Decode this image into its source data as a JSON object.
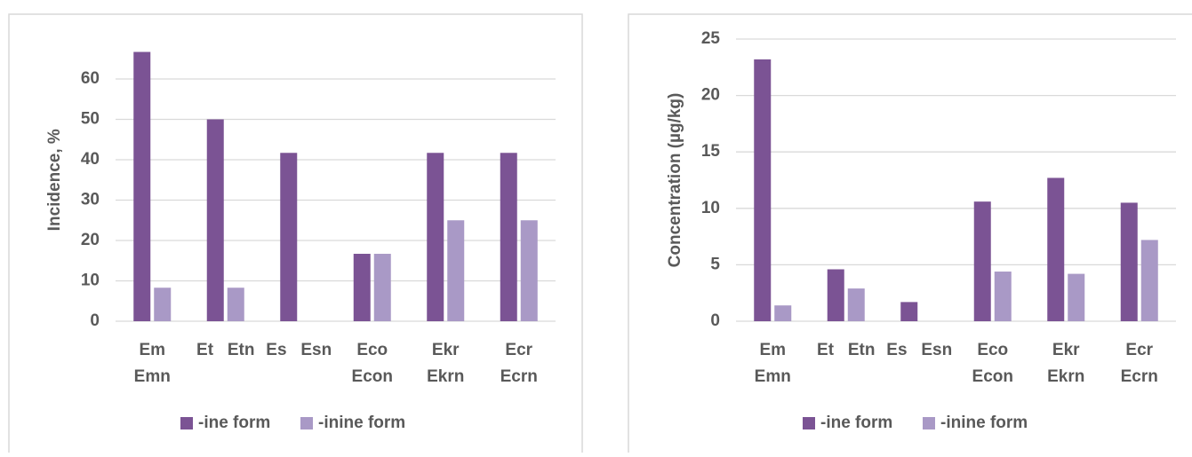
{
  "chart_data": [
    {
      "type": "bar",
      "y_label": "Incidence, %",
      "categories": [
        [
          "Em",
          "Emn"
        ],
        [
          "Et   Etn"
        ],
        [
          "Es   Esn"
        ],
        [
          "Eco",
          "Econ"
        ],
        [
          "Ekr",
          "Ekrn"
        ],
        [
          "Ecr",
          "Ecrn"
        ]
      ],
      "series": [
        {
          "name": "-ine form",
          "color": "#7b5394",
          "values": [
            66.7,
            50,
            41.7,
            16.7,
            41.7,
            41.7
          ]
        },
        {
          "name": "-inine form",
          "color": "#a999c6",
          "values": [
            8.3,
            8.3,
            0,
            16.7,
            25,
            25
          ]
        }
      ],
      "ylim": [
        0,
        70
      ],
      "yticks": [
        0,
        10,
        20,
        30,
        40,
        50,
        60
      ],
      "grid": true,
      "legend": "bottom"
    },
    {
      "type": "bar",
      "y_label": "Concentration  (µg/kg)",
      "categories": [
        [
          "Em",
          "Emn"
        ],
        [
          "Et   Etn"
        ],
        [
          "Es   Esn"
        ],
        [
          "Eco",
          "Econ"
        ],
        [
          "Ekr",
          "Ekrn"
        ],
        [
          "Ecr",
          "Ecrn"
        ]
      ],
      "series": [
        {
          "name": "-ine form",
          "color": "#7b5394",
          "values": [
            23.2,
            4.6,
            1.7,
            10.6,
            12.7,
            10.5
          ]
        },
        {
          "name": "-inine form",
          "color": "#a999c6",
          "values": [
            1.4,
            2.9,
            0,
            4.4,
            4.2,
            7.2
          ]
        }
      ],
      "ylim": [
        0,
        25
      ],
      "yticks": [
        0,
        5,
        10,
        15,
        20,
        25
      ],
      "grid": true,
      "legend": "bottom"
    }
  ]
}
